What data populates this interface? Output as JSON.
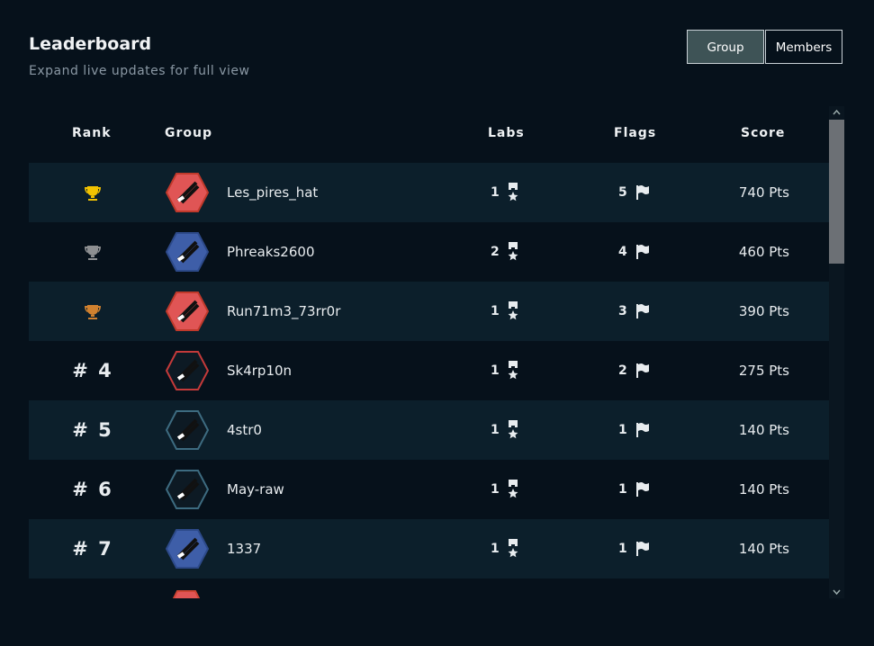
{
  "header": {
    "title": "Leaderboard",
    "subtitle": "Expand live updates for full view"
  },
  "tabs": [
    {
      "label": "Group",
      "active": true
    },
    {
      "label": "Members",
      "active": false
    }
  ],
  "table": {
    "columns": [
      "Rank",
      "Group",
      "Labs",
      "Flags",
      "Score"
    ],
    "rows": [
      {
        "trophy": "#f2c200",
        "name": "Les_pires_hat",
        "labs": 1,
        "flags": 5,
        "score": "740 Pts"
      },
      {
        "trophy": "#8d8f91",
        "name": "Phreaks2600",
        "labs": 2,
        "flags": 4,
        "score": "460 Pts"
      },
      {
        "trophy": "#d0812f",
        "name": "Run71m3_73rr0r",
        "labs": 1,
        "flags": 3,
        "score": "390 Pts"
      },
      {
        "rank": "# 4",
        "name": "Sk4rp10n",
        "labs": 1,
        "flags": 2,
        "score": "275 Pts"
      },
      {
        "rank": "# 5",
        "name": "4str0",
        "labs": 1,
        "flags": 1,
        "score": "140 Pts"
      },
      {
        "rank": "# 6",
        "name": "May-raw",
        "labs": 1,
        "flags": 1,
        "score": "140 Pts"
      },
      {
        "rank": "# 7",
        "name": "1337",
        "labs": 1,
        "flags": 1,
        "score": "140 Pts"
      }
    ]
  }
}
